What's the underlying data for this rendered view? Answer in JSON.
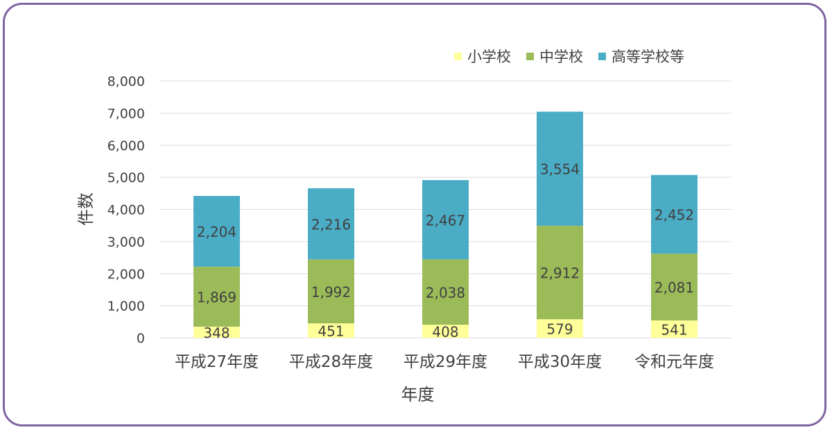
{
  "chart_data": {
    "type": "bar",
    "stacked": true,
    "categories": [
      "平成27年度",
      "平成28年度",
      "平成29年度",
      "平成30年度",
      "令和元年度"
    ],
    "series": [
      {
        "name": "小学校",
        "color": "#ffff99",
        "values": [
          348,
          451,
          408,
          579,
          541
        ]
      },
      {
        "name": "中学校",
        "color": "#9bbb59",
        "values": [
          1869,
          1992,
          2038,
          2912,
          2081
        ]
      },
      {
        "name": "高等学校等",
        "color": "#4bacc6",
        "values": [
          2204,
          2216,
          2467,
          3554,
          2452
        ]
      }
    ],
    "xlabel": "年度",
    "ylabel": "件数",
    "ylim": [
      0,
      8000
    ],
    "yticks": [
      0,
      1000,
      2000,
      3000,
      4000,
      5000,
      6000,
      7000,
      8000
    ],
    "grid": true,
    "legend": "top-right"
  },
  "colors": {
    "frame_border": "#8064a2",
    "grid": "#d9d9d9",
    "text": "#404040"
  }
}
